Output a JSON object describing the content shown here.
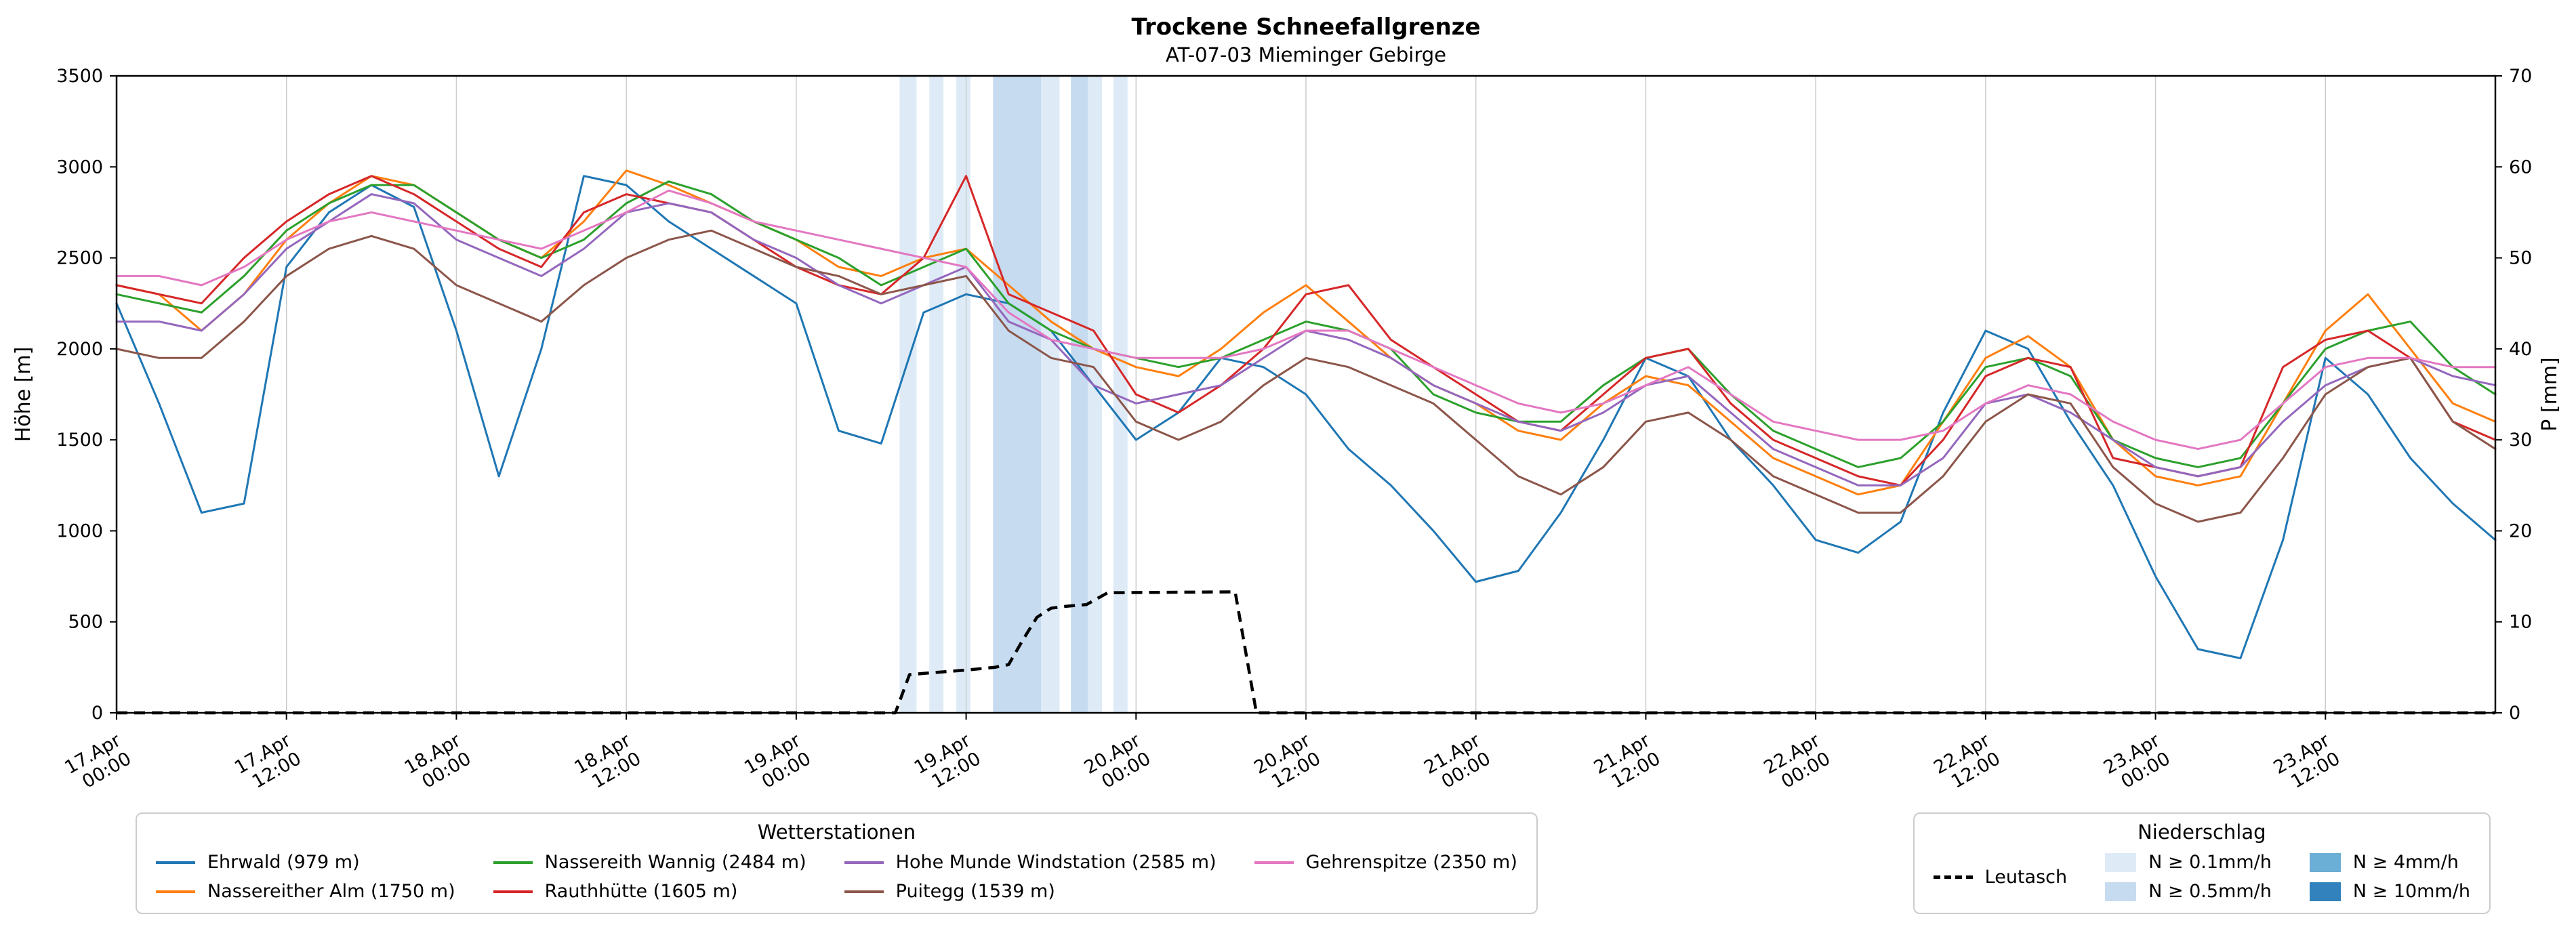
{
  "title": "Trockene Schneefallgrenze",
  "subtitle": "AT-07-03 Mieminger Gebirge",
  "axes": {
    "y_left_label": "Höhe [m]",
    "y_right_label": "P [mm]",
    "y_left_ticks": [
      0,
      500,
      1000,
      1500,
      2000,
      2500,
      3000,
      3500
    ],
    "y_right_ticks": [
      0,
      10,
      20,
      30,
      40,
      50,
      60,
      70
    ],
    "x_ticks_t": [
      0,
      12,
      24,
      36,
      48,
      60,
      72,
      84,
      96,
      108,
      120,
      132,
      144,
      156
    ],
    "x_tick_labels": [
      [
        "17.Apr",
        "00:00"
      ],
      [
        "17.Apr",
        "12:00"
      ],
      [
        "18.Apr",
        "00:00"
      ],
      [
        "18.Apr",
        "12:00"
      ],
      [
        "19.Apr",
        "00:00"
      ],
      [
        "19.Apr",
        "12:00"
      ],
      [
        "20.Apr",
        "00:00"
      ],
      [
        "20.Apr",
        "12:00"
      ],
      [
        "21.Apr",
        "00:00"
      ],
      [
        "21.Apr",
        "12:00"
      ],
      [
        "22.Apr",
        "00:00"
      ],
      [
        "22.Apr",
        "12:00"
      ],
      [
        "23.Apr",
        "00:00"
      ],
      [
        "23.Apr",
        "12:00"
      ]
    ]
  },
  "chart_data": {
    "type": "line",
    "title": "Trockene Schneefallgrenze",
    "subtitle": "AT-07-03 Mieminger Gebirge",
    "x_unit": "hours since 17.Apr 00:00",
    "x_range": [
      0,
      168
    ],
    "ylim_left": [
      0,
      3500
    ],
    "ylim_right": [
      0,
      70
    ],
    "grid": "vertical-only",
    "x": [
      0,
      3,
      6,
      9,
      12,
      15,
      18,
      21,
      24,
      27,
      30,
      33,
      36,
      39,
      42,
      45,
      48,
      51,
      54,
      57,
      60,
      63,
      66,
      69,
      72,
      75,
      78,
      81,
      84,
      87,
      90,
      93,
      96,
      99,
      102,
      105,
      108,
      111,
      114,
      117,
      120,
      123,
      126,
      129,
      132,
      135,
      138,
      141,
      144,
      147,
      150,
      153,
      156,
      159,
      162,
      165,
      168
    ],
    "series": [
      {
        "name": "Ehrwald (979 m)",
        "color": "#1f77b4",
        "values": [
          2250,
          1700,
          1100,
          1150,
          2450,
          2750,
          2900,
          2780,
          2100,
          1300,
          2000,
          2950,
          2900,
          2700,
          2550,
          2400,
          2250,
          1550,
          1480,
          2200,
          2300,
          2250,
          2100,
          1800,
          1500,
          1650,
          1950,
          1900,
          1750,
          1450,
          1250,
          1000,
          720,
          780,
          1100,
          1500,
          1950,
          1850,
          1500,
          1250,
          950,
          880,
          1050,
          1650,
          2100,
          2000,
          1600,
          1250,
          750,
          350,
          300,
          950,
          1950,
          1750,
          1400,
          1150,
          950
        ]
      },
      {
        "name": "Nassereither Alm (1750 m)",
        "color": "#ff7f0e",
        "values": [
          2350,
          2300,
          2100,
          2300,
          2600,
          2800,
          2950,
          2900,
          2750,
          2600,
          2500,
          2700,
          2980,
          2900,
          2800,
          2700,
          2600,
          2450,
          2400,
          2500,
          2550,
          2350,
          2150,
          2000,
          1900,
          1850,
          2000,
          2200,
          2350,
          2150,
          1950,
          1800,
          1700,
          1550,
          1500,
          1700,
          1850,
          1800,
          1600,
          1400,
          1300,
          1200,
          1250,
          1600,
          1950,
          2070,
          1900,
          1500,
          1300,
          1250,
          1300,
          1700,
          2100,
          2300,
          2000,
          1700,
          1600
        ]
      },
      {
        "name": "Nassereith Wannig (2484 m)",
        "color": "#2ca02c",
        "values": [
          2300,
          2250,
          2200,
          2400,
          2650,
          2800,
          2900,
          2900,
          2750,
          2600,
          2500,
          2600,
          2800,
          2920,
          2850,
          2700,
          2600,
          2500,
          2350,
          2450,
          2550,
          2250,
          2100,
          2000,
          1950,
          1900,
          1950,
          2050,
          2150,
          2100,
          2000,
          1750,
          1650,
          1600,
          1600,
          1800,
          1950,
          2000,
          1750,
          1550,
          1450,
          1350,
          1400,
          1600,
          1900,
          1950,
          1850,
          1500,
          1400,
          1350,
          1400,
          1700,
          2000,
          2100,
          2150,
          1900,
          1750
        ]
      },
      {
        "name": "Rauthhütte (1605 m)",
        "color": "#d62728",
        "values": [
          2350,
          2300,
          2250,
          2500,
          2700,
          2850,
          2950,
          2850,
          2700,
          2550,
          2450,
          2750,
          2850,
          2800,
          2750,
          2600,
          2450,
          2350,
          2300,
          2500,
          2950,
          2300,
          2200,
          2100,
          1750,
          1650,
          1800,
          2000,
          2300,
          2350,
          2050,
          1900,
          1750,
          1600,
          1550,
          1750,
          1950,
          2000,
          1700,
          1500,
          1400,
          1300,
          1250,
          1500,
          1850,
          1950,
          1900,
          1400,
          1350,
          1300,
          1350,
          1900,
          2050,
          2100,
          1950,
          1600,
          1500
        ]
      },
      {
        "name": "Hohe Munde Windstation (2585 m)",
        "color": "#9467bd",
        "values": [
          2150,
          2150,
          2100,
          2300,
          2550,
          2700,
          2850,
          2800,
          2600,
          2500,
          2400,
          2550,
          2750,
          2800,
          2750,
          2600,
          2500,
          2350,
          2250,
          2350,
          2450,
          2150,
          2050,
          1800,
          1700,
          1750,
          1800,
          1950,
          2100,
          2050,
          1950,
          1800,
          1700,
          1600,
          1550,
          1650,
          1800,
          1850,
          1650,
          1450,
          1350,
          1250,
          1250,
          1400,
          1700,
          1750,
          1650,
          1500,
          1350,
          1300,
          1350,
          1600,
          1800,
          1900,
          1950,
          1850,
          1800
        ]
      },
      {
        "name": "Puitegg (1539 m)",
        "color": "#8c564b",
        "values": [
          2000,
          1950,
          1950,
          2150,
          2400,
          2550,
          2620,
          2550,
          2350,
          2250,
          2150,
          2350,
          2500,
          2600,
          2650,
          2550,
          2450,
          2400,
          2300,
          2350,
          2400,
          2100,
          1950,
          1900,
          1600,
          1500,
          1600,
          1800,
          1950,
          1900,
          1800,
          1700,
          1500,
          1300,
          1200,
          1350,
          1600,
          1650,
          1500,
          1300,
          1200,
          1100,
          1100,
          1300,
          1600,
          1750,
          1700,
          1350,
          1150,
          1050,
          1100,
          1400,
          1750,
          1900,
          1950,
          1600,
          1450
        ]
      },
      {
        "name": "Gehrenspitze (2350 m)",
        "color": "#e377c2",
        "values": [
          2400,
          2400,
          2350,
          2450,
          2600,
          2700,
          2750,
          2700,
          2650,
          2600,
          2550,
          2650,
          2750,
          2870,
          2800,
          2700,
          2650,
          2600,
          2550,
          2500,
          2450,
          2200,
          2050,
          2000,
          1950,
          1950,
          1950,
          2000,
          2100,
          2100,
          2000,
          1900,
          1800,
          1700,
          1650,
          1700,
          1800,
          1900,
          1750,
          1600,
          1550,
          1500,
          1500,
          1550,
          1700,
          1800,
          1750,
          1600,
          1500,
          1450,
          1500,
          1700,
          1900,
          1950,
          1950,
          1900,
          1900
        ]
      }
    ],
    "precip_line": {
      "name": "Leutasch",
      "axis": "right",
      "style": "dashed",
      "color": "#000000",
      "x": [
        0,
        55,
        56,
        57.5,
        60,
        62,
        63,
        64,
        65,
        66,
        67,
        68.5,
        70,
        79,
        80.5,
        168
      ],
      "values": [
        0,
        0,
        4.2,
        4.4,
        4.7,
        5.0,
        5.3,
        8,
        10.5,
        11.5,
        11.7,
        11.9,
        13.2,
        13.3,
        0,
        0
      ]
    },
    "precip_bands": [
      {
        "start": 55.3,
        "end": 56.5,
        "level": "0.1"
      },
      {
        "start": 57.4,
        "end": 58.4,
        "level": "0.1"
      },
      {
        "start": 59.3,
        "end": 60.3,
        "level": "0.1"
      },
      {
        "start": 61.9,
        "end": 65.3,
        "level": "0.5"
      },
      {
        "start": 65.3,
        "end": 66.6,
        "level": "0.1"
      },
      {
        "start": 67.4,
        "end": 68.6,
        "level": "0.5"
      },
      {
        "start": 68.6,
        "end": 69.6,
        "level": "0.1"
      },
      {
        "start": 70.4,
        "end": 71.4,
        "level": "0.1"
      }
    ],
    "band_colors": {
      "0.1": "#deebf7",
      "0.5": "#c6dbef",
      "4": "#6baed6",
      "10": "#3182bd"
    }
  },
  "legend_stations": {
    "title": "Wetterstationen"
  },
  "legend_precip": {
    "title": "Niederschlag",
    "line_label": "Leutasch",
    "items": [
      {
        "label": "N ≥ 0.1mm/h",
        "level": "0.1"
      },
      {
        "label": "N ≥ 0.5mm/h",
        "level": "0.5"
      },
      {
        "label": "N ≥ 4mm/h",
        "level": "4"
      },
      {
        "label": "N ≥ 10mm/h",
        "level": "10"
      }
    ]
  }
}
